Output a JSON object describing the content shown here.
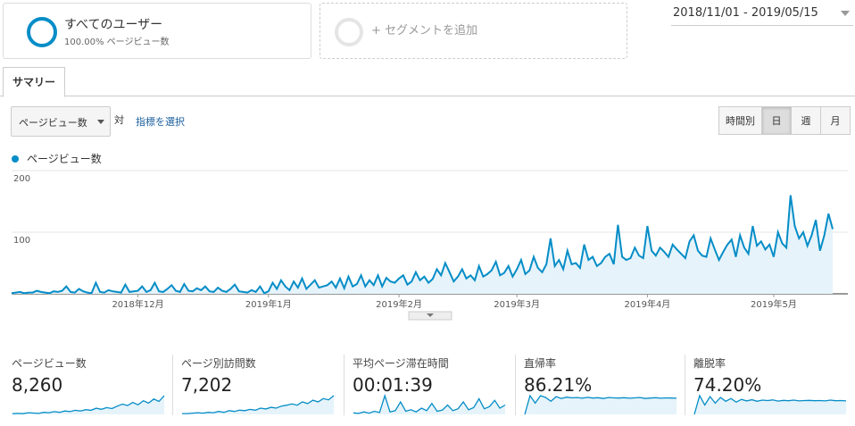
{
  "segments": {
    "active": {
      "name": "すべてのユーザー",
      "subtitle": "100.00% ページビュー数"
    },
    "add": "+ セグメントを追加"
  },
  "date_range": "2018/11/01 - 2019/05/15",
  "tab": "サマリー",
  "controls": {
    "metric": "ページビュー数",
    "versus": "対",
    "select_metric": "指標を選択",
    "intervals": [
      "時間別",
      "日",
      "週",
      "月"
    ],
    "selected_interval": 1
  },
  "chart_data": {
    "type": "line",
    "grid": true,
    "fill": true,
    "ylim": [
      0,
      200
    ],
    "yticks": [
      100,
      200
    ],
    "categories": [
      null,
      null,
      null,
      null,
      null,
      null,
      null,
      null,
      null,
      null,
      null,
      null,
      null,
      null,
      null,
      null,
      null,
      null,
      null,
      null,
      null,
      null,
      null,
      null,
      null,
      null,
      null,
      null,
      null,
      null,
      "2018年12月",
      null,
      null,
      null,
      null,
      null,
      null,
      null,
      null,
      null,
      null,
      null,
      null,
      null,
      null,
      null,
      null,
      null,
      null,
      null,
      null,
      null,
      null,
      null,
      null,
      null,
      null,
      null,
      null,
      null,
      null,
      "2019年1月",
      null,
      null,
      null,
      null,
      null,
      null,
      null,
      null,
      null,
      null,
      null,
      null,
      null,
      null,
      null,
      null,
      null,
      null,
      null,
      null,
      null,
      null,
      null,
      null,
      null,
      null,
      null,
      null,
      null,
      null,
      "2019年2月",
      null,
      null,
      null,
      null,
      null,
      null,
      null,
      null,
      null,
      null,
      null,
      null,
      null,
      null,
      null,
      null,
      null,
      null,
      null,
      null,
      null,
      null,
      null,
      null,
      null,
      null,
      null,
      "2019年3月",
      null,
      null,
      null,
      null,
      null,
      null,
      null,
      null,
      null,
      null,
      null,
      null,
      null,
      null,
      null,
      null,
      null,
      null,
      null,
      null,
      null,
      null,
      null,
      null,
      null,
      null,
      null,
      null,
      null,
      null,
      "2019年4月",
      null,
      null,
      null,
      null,
      null,
      null,
      null,
      null,
      null,
      null,
      null,
      null,
      null,
      null,
      null,
      null,
      null,
      null,
      null,
      null,
      null,
      null,
      null,
      null,
      null,
      null,
      null,
      null,
      null,
      "2019年5月",
      null,
      null,
      null,
      null,
      null,
      null,
      null,
      null,
      null,
      null,
      null,
      null,
      null,
      null
    ],
    "series": [
      {
        "name": "ページビュー数",
        "color": "#058dc7",
        "values": [
          1,
          2,
          3,
          1,
          2,
          2,
          5,
          3,
          2,
          1,
          4,
          3,
          5,
          12,
          3,
          2,
          8,
          4,
          2,
          1,
          18,
          3,
          2,
          6,
          4,
          3,
          2,
          15,
          3,
          4,
          5,
          12,
          3,
          6,
          18,
          4,
          3,
          8,
          14,
          5,
          3,
          16,
          5,
          4,
          9,
          6,
          12,
          4,
          3,
          10,
          5,
          3,
          8,
          15,
          4,
          3,
          2,
          6,
          3,
          12,
          1,
          4,
          18,
          8,
          22,
          12,
          6,
          20,
          10,
          25,
          8,
          15,
          22,
          10,
          12,
          14,
          20,
          10,
          25,
          9,
          28,
          12,
          16,
          30,
          12,
          22,
          14,
          30,
          12,
          26,
          20,
          18,
          25,
          30,
          15,
          20,
          35,
          22,
          28,
          18,
          24,
          40,
          30,
          50,
          35,
          20,
          28,
          40,
          25,
          30,
          22,
          45,
          28,
          32,
          38,
          52,
          30,
          34,
          45,
          28,
          40,
          55,
          32,
          38,
          60,
          42,
          35,
          48,
          90,
          45,
          55,
          40,
          70,
          48,
          50,
          42,
          80,
          55,
          60,
          45,
          50,
          60,
          65,
          48,
          112,
          60,
          55,
          58,
          75,
          62,
          58,
          110,
          70,
          62,
          75,
          68,
          60,
          80,
          72,
          65,
          58,
          85,
          95,
          70,
          62,
          60,
          90,
          72,
          55,
          68,
          80,
          88,
          60,
          95,
          75,
          65,
          110,
          78,
          85,
          72,
          80,
          60,
          100,
          82,
          75,
          160,
          110,
          90,
          100,
          78,
          95,
          120,
          70,
          95,
          130,
          105
        ]
      }
    ]
  },
  "metrics": [
    {
      "label": "ページビュー数",
      "value": "8,260",
      "sparkline": [
        2,
        3,
        2,
        5,
        4,
        3,
        6,
        5,
        8,
        6,
        10,
        8,
        12,
        10,
        14,
        12,
        18,
        15,
        20,
        17,
        24,
        30,
        26,
        35,
        28,
        40,
        33,
        45,
        38,
        55
      ]
    },
    {
      "label": "ページ別訪問数",
      "value": "7,202",
      "sparkline": [
        2,
        2,
        3,
        4,
        3,
        5,
        4,
        7,
        5,
        9,
        7,
        10,
        9,
        12,
        10,
        15,
        13,
        17,
        15,
        20,
        22,
        25,
        22,
        30,
        26,
        34,
        30,
        38,
        35,
        45
      ]
    },
    {
      "label": "平均ページ滞在時間",
      "value": "00:01:39",
      "sparkline": [
        5,
        3,
        8,
        4,
        10,
        6,
        60,
        8,
        12,
        40,
        10,
        15,
        8,
        20,
        12,
        35,
        10,
        14,
        30,
        12,
        18,
        40,
        15,
        22,
        50,
        18,
        25,
        45,
        20,
        30
      ]
    },
    {
      "label": "直帰率",
      "value": "86.21%",
      "sparkline": [
        0,
        100,
        60,
        100,
        90,
        70,
        95,
        85,
        92,
        88,
        90,
        86,
        91,
        87,
        89,
        85,
        90,
        88,
        87,
        89,
        86,
        88,
        90,
        85,
        87,
        89,
        86,
        88,
        87,
        86
      ]
    },
    {
      "label": "離脱率",
      "value": "74.20%",
      "sparkline": [
        0,
        100,
        50,
        95,
        60,
        90,
        70,
        85,
        65,
        80,
        72,
        78,
        70,
        76,
        74,
        77,
        71,
        75,
        73,
        76,
        72,
        74,
        75,
        73,
        74,
        72,
        76,
        73,
        74,
        72
      ]
    }
  ]
}
